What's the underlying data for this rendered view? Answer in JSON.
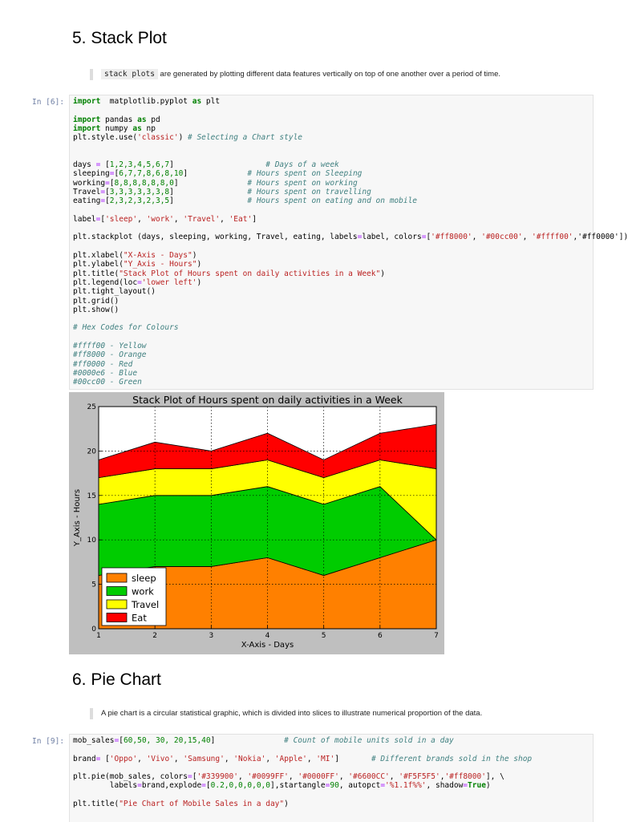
{
  "section5": {
    "heading": "5. Stack Plot",
    "quote_code": "stack plots",
    "quote_text": " are generated by plotting different data features vertically on top of one another over a period of time.",
    "prompt": "In [6]:"
  },
  "section6": {
    "heading": "6. Pie Chart",
    "quote_text": "A pie chart is a circular statistical graphic, which is divided into slices to illustrate numerical proportion of the data.",
    "prompt": "In [9]:"
  },
  "code6": [
    [
      [
        "kw",
        "import"
      ],
      [
        "",
        "  matplotlib.pyplot "
      ],
      [
        "kw",
        "as"
      ],
      [
        "",
        " plt"
      ]
    ],
    [],
    [
      [
        "kw",
        "import"
      ],
      [
        "",
        " pandas "
      ],
      [
        "kw",
        "as"
      ],
      [
        "",
        " pd"
      ]
    ],
    [
      [
        "kw",
        "import"
      ],
      [
        "",
        " numpy "
      ],
      [
        "kw",
        "as"
      ],
      [
        "",
        " np"
      ]
    ],
    [
      [
        "",
        "plt.style.use("
      ],
      [
        "st",
        "'classic'"
      ],
      [
        "",
        ") "
      ],
      [
        "cm",
        "# Selecting a Chart style"
      ]
    ],
    [],
    [],
    [
      [
        "",
        "days "
      ],
      [
        "op",
        "="
      ],
      [
        "",
        " ["
      ],
      [
        "nm",
        "1,2,3,4,5,6,7"
      ],
      [
        "",
        "]                    "
      ],
      [
        "cm",
        "# Days of a week"
      ]
    ],
    [
      [
        "",
        "sleeping"
      ],
      [
        "op",
        "="
      ],
      [
        "",
        "["
      ],
      [
        "nm",
        "6,7,7,8,6,8,10"
      ],
      [
        "",
        "]             "
      ],
      [
        "cm",
        "# Hours spent on Sleeping"
      ]
    ],
    [
      [
        "",
        "working"
      ],
      [
        "op",
        "="
      ],
      [
        "",
        "["
      ],
      [
        "nm",
        "8,8,8,8,8,8,0"
      ],
      [
        "",
        "]               "
      ],
      [
        "cm",
        "# Hours spent on working"
      ]
    ],
    [
      [
        "",
        "Travel"
      ],
      [
        "op",
        "="
      ],
      [
        "",
        "["
      ],
      [
        "nm",
        "3,3,3,3,3,3,8"
      ],
      [
        "",
        "]                "
      ],
      [
        "cm",
        "# Hours spent on travelling"
      ]
    ],
    [
      [
        "",
        "eating"
      ],
      [
        "op",
        "="
      ],
      [
        "",
        "["
      ],
      [
        "nm",
        "2,3,2,3,2,3,5"
      ],
      [
        "",
        "]                "
      ],
      [
        "cm",
        "# Hours spent on eating and on mobile"
      ]
    ],
    [],
    [
      [
        "",
        "label"
      ],
      [
        "op",
        "="
      ],
      [
        "",
        "["
      ],
      [
        "st",
        "'sleep'"
      ],
      [
        "",
        ", "
      ],
      [
        "st",
        "'work'"
      ],
      [
        "",
        ", "
      ],
      [
        "st",
        "'Travel'"
      ],
      [
        "",
        ", "
      ],
      [
        "st",
        "'Eat'"
      ],
      [
        "",
        "]"
      ]
    ],
    [],
    [
      [
        "",
        "plt.stackplot (days, sleeping, working, Travel, eating, labels"
      ],
      [
        "op",
        "="
      ],
      [
        "",
        "label, colors"
      ],
      [
        "op",
        "="
      ],
      [
        "",
        "["
      ],
      [
        "st",
        "'#ff8000'"
      ],
      [
        "",
        ", "
      ],
      [
        "st",
        "'#00cc00'"
      ],
      [
        "",
        ", "
      ],
      [
        "st",
        "'#ffff00'"
      ],
      [
        "",
        ",'#ff0000'])"
      ]
    ],
    [],
    [
      [
        "",
        "plt.xlabel("
      ],
      [
        "st",
        "\"X-Axis - Days\""
      ],
      [
        "",
        ")"
      ]
    ],
    [
      [
        "",
        "plt.ylabel("
      ],
      [
        "st",
        "\"Y_Axis - Hours\""
      ],
      [
        "",
        ")"
      ]
    ],
    [
      [
        "",
        "plt.title("
      ],
      [
        "st",
        "\"Stack Plot of Hours spent on daily activities in a Week\""
      ],
      [
        "",
        ")"
      ]
    ],
    [
      [
        "",
        "plt.legend(loc"
      ],
      [
        "op",
        "="
      ],
      [
        "st",
        "'lower left'"
      ],
      [
        "",
        ")"
      ]
    ],
    [
      [
        "",
        "plt.tight_layout()"
      ]
    ],
    [
      [
        "",
        "plt.grid()"
      ]
    ],
    [
      [
        "",
        "plt.show()"
      ]
    ],
    [],
    [
      [
        "cm",
        "# Hex Codes for Colours"
      ]
    ],
    [],
    [
      [
        "cm",
        "#ffff00 - Yellow"
      ]
    ],
    [
      [
        "cm",
        "#ff8000 - Orange"
      ]
    ],
    [
      [
        "cm",
        "#ff0000 - Red"
      ]
    ],
    [
      [
        "cm",
        "#0000e6 - Blue"
      ]
    ],
    [
      [
        "cm",
        "#00cc00 - Green"
      ]
    ]
  ],
  "code9": [
    [
      [
        "",
        "mob_sales"
      ],
      [
        "op",
        "="
      ],
      [
        "",
        "["
      ],
      [
        "nm",
        "60,50, 30, 20,15,40"
      ],
      [
        "",
        "]               "
      ],
      [
        "cm",
        "# Count of mobile units sold in a day"
      ]
    ],
    [],
    [
      [
        "",
        "brand"
      ],
      [
        "op",
        "="
      ],
      [
        "",
        " ["
      ],
      [
        "st",
        "'Oppo'"
      ],
      [
        "",
        ", "
      ],
      [
        "st",
        "'Vivo'"
      ],
      [
        "",
        ", "
      ],
      [
        "st",
        "'Samsung'"
      ],
      [
        "",
        ", "
      ],
      [
        "st",
        "'Nokia'"
      ],
      [
        "",
        ", "
      ],
      [
        "st",
        "'Apple'"
      ],
      [
        "",
        ", "
      ],
      [
        "st",
        "'MI'"
      ],
      [
        "",
        "]       "
      ],
      [
        "cm",
        "# Different brands sold in the shop"
      ]
    ],
    [],
    [
      [
        "",
        "plt.pie(mob_sales, colors"
      ],
      [
        "op",
        "="
      ],
      [
        "",
        "["
      ],
      [
        "st",
        "'#339900'"
      ],
      [
        "",
        ", "
      ],
      [
        "st",
        "'#0099FF'"
      ],
      [
        "",
        ", "
      ],
      [
        "st",
        "'#0000FF'"
      ],
      [
        "",
        ", "
      ],
      [
        "st",
        "'#6600CC'"
      ],
      [
        "",
        ", "
      ],
      [
        "st",
        "'#F5F5F5'"
      ],
      [
        "",
        ","
      ],
      [
        "st",
        "'#ff8000'"
      ],
      [
        "",
        "], \\"
      ]
    ],
    [
      [
        "",
        "        labels"
      ],
      [
        "op",
        "="
      ],
      [
        "",
        "brand,explode"
      ],
      [
        "op",
        "="
      ],
      [
        "",
        "["
      ],
      [
        "nm",
        "0.2,0,0,0,0,0"
      ],
      [
        "",
        "],startangle"
      ],
      [
        "op",
        "="
      ],
      [
        "nm",
        "90"
      ],
      [
        "",
        ", autopct"
      ],
      [
        "op",
        "="
      ],
      [
        "st",
        "'%1.1f%%'"
      ],
      [
        "",
        ", shadow"
      ],
      [
        "op",
        "="
      ],
      [
        "kw",
        "True"
      ],
      [
        "",
        ")"
      ]
    ],
    [],
    [
      [
        "",
        "plt.title("
      ],
      [
        "st",
        "\"Pie Chart of Mobile Sales in a day\""
      ],
      [
        "",
        ")"
      ]
    ]
  ],
  "chart_data": {
    "type": "area",
    "title": "Stack Plot of Hours spent on daily activities in a Week",
    "xlabel": "X-Axis - Days",
    "ylabel": "Y_Axis - Hours",
    "x": [
      1,
      2,
      3,
      4,
      5,
      6,
      7
    ],
    "xlim": [
      1,
      7
    ],
    "ylim": [
      0,
      25
    ],
    "xticks": [
      "1",
      "2",
      "3",
      "4",
      "5",
      "6",
      "7"
    ],
    "yticks": [
      "0",
      "5",
      "10",
      "15",
      "20",
      "25"
    ],
    "grid": true,
    "legend_position": "lower left",
    "series": [
      {
        "name": "sleep",
        "color": "#ff8000",
        "values": [
          6,
          7,
          7,
          8,
          6,
          8,
          10
        ]
      },
      {
        "name": "work",
        "color": "#00cc00",
        "values": [
          8,
          8,
          8,
          8,
          8,
          8,
          0
        ]
      },
      {
        "name": "Travel",
        "color": "#ffff00",
        "values": [
          3,
          3,
          3,
          3,
          3,
          3,
          8
        ]
      },
      {
        "name": "Eat",
        "color": "#ff0000",
        "values": [
          2,
          3,
          2,
          3,
          2,
          3,
          5
        ]
      }
    ]
  }
}
